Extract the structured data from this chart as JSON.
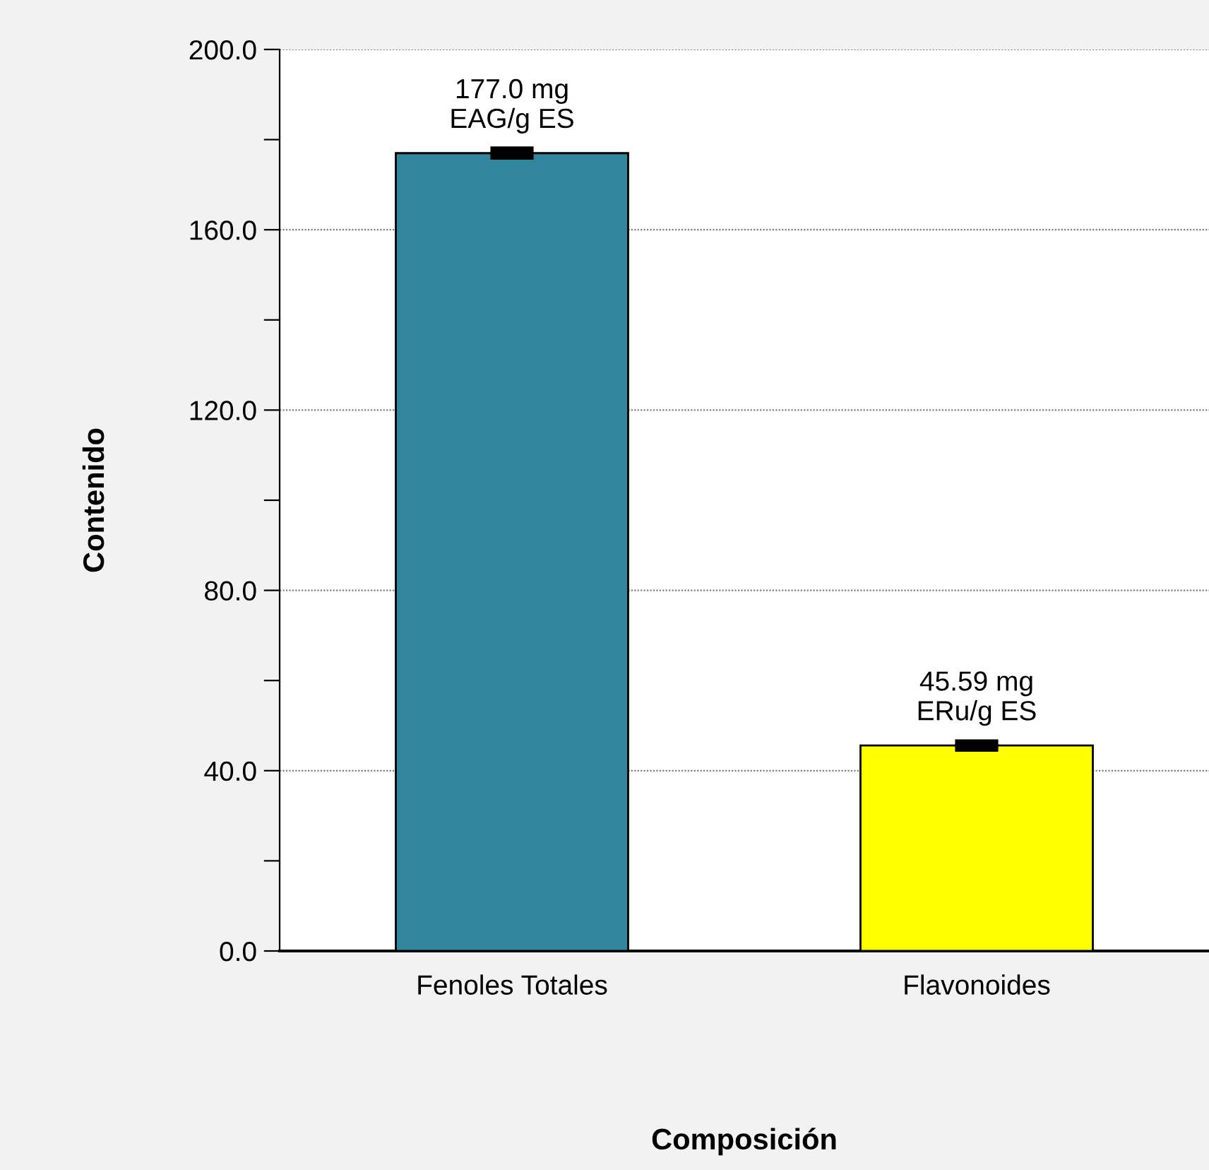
{
  "chart_data": {
    "type": "bar",
    "xlabel": "Composición",
    "ylabel": "Contenido",
    "categories": [
      "Fenoles Totales",
      "Flavonoides"
    ],
    "values": [
      177.0,
      45.59
    ],
    "colors": [
      "#31859c",
      "#ffff00"
    ],
    "errors": [
      0.6,
      0.5
    ],
    "value_labels": [
      "177.0 mg\nEAG/g ES",
      "45.59 mg\nERu/g ES"
    ],
    "ylim": [
      0,
      200
    ],
    "yticks": [
      {
        "value": 0,
        "label": "0.0"
      },
      {
        "value": 20,
        "label": null
      },
      {
        "value": 40,
        "label": "40.0"
      },
      {
        "value": 60,
        "label": null
      },
      {
        "value": 80,
        "label": "80.0"
      },
      {
        "value": 100,
        "label": null
      },
      {
        "value": 120,
        "label": "120.0"
      },
      {
        "value": 140,
        "label": null
      },
      {
        "value": 160,
        "label": "160.0"
      },
      {
        "value": 180,
        "label": null
      },
      {
        "value": 200,
        "label": "200.0"
      }
    ],
    "grid": "y"
  }
}
